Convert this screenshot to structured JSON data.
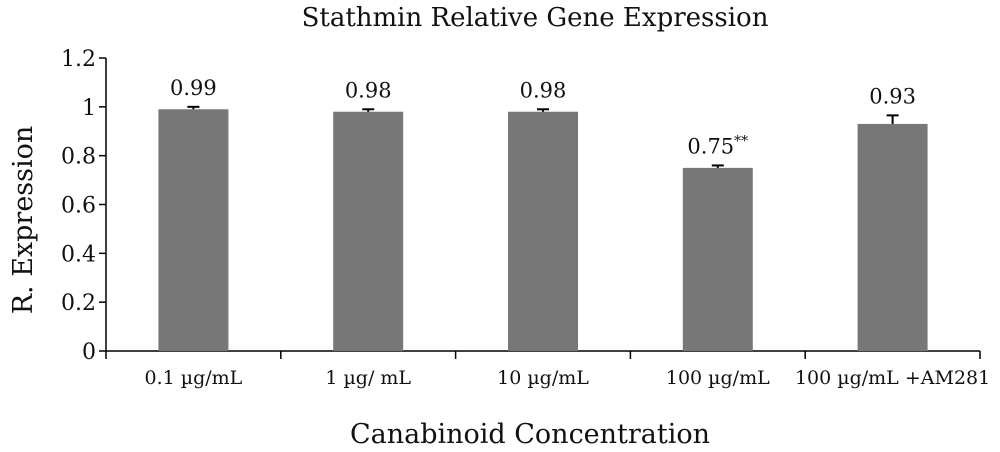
{
  "chart_data": {
    "type": "bar",
    "title": "Stathmin Relative Gene Expression",
    "xlabel": "Canabinoid Concentration",
    "ylabel": "R. Expression",
    "ylim": [
      0,
      1.2
    ],
    "yticks": [
      0,
      0.2,
      0.4,
      0.6,
      0.8,
      1,
      1.2
    ],
    "ytick_labels": [
      "0",
      "0.2",
      "0.4",
      "0.6",
      "0.8",
      "1",
      "1.2"
    ],
    "categories": [
      "0.1 µg/mL",
      "1 µg/ mL",
      "10 µg/mL",
      "100 µg/mL",
      "100 µg/mL +AM281"
    ],
    "values": [
      0.99,
      0.98,
      0.98,
      0.75,
      0.93
    ],
    "errors": [
      0.01,
      0.01,
      0.01,
      0.01,
      0.035
    ],
    "data_labels": [
      "0.99",
      "0.98",
      "0.98",
      "0.75",
      "0.93"
    ],
    "significance": [
      "",
      "",
      "",
      "**",
      ""
    ],
    "grid": false,
    "legend": "none",
    "bar_color": "#777777"
  }
}
